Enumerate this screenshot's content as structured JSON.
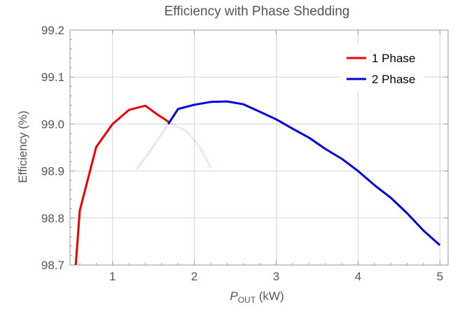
{
  "chart_data": {
    "type": "line",
    "title": "Efficiency with Phase Shedding",
    "xlabel_main": "P",
    "xlabel_sub": "OUT",
    "xlabel_unit": " (kW)",
    "ylabel": "Efficiency (%)",
    "xlim": [
      0.48,
      5.1
    ],
    "ylim": [
      98.7,
      99.2
    ],
    "xticks": [
      1,
      2,
      3,
      4,
      5
    ],
    "yticks": [
      98.7,
      98.8,
      98.9,
      99.0,
      99.1,
      99.2
    ],
    "ytick_labels": [
      "98.7",
      "98.8",
      "98.9",
      "99.0",
      "99.1",
      "99.2"
    ],
    "grid": true,
    "legend_position": "top-right",
    "series": [
      {
        "name": "1 Phase",
        "color": "#ee0000",
        "solid": [
          [
            0.55,
            98.7
          ],
          [
            0.6,
            98.816
          ],
          [
            0.8,
            98.951
          ],
          [
            1.0,
            99.0
          ],
          [
            1.2,
            99.03
          ],
          [
            1.4,
            99.039
          ],
          [
            1.55,
            99.02
          ],
          [
            1.7,
            99.003
          ]
        ],
        "faded": [
          [
            1.7,
            99.003
          ],
          [
            1.9,
            98.985
          ],
          [
            2.05,
            98.955
          ],
          [
            2.2,
            98.908
          ]
        ]
      },
      {
        "name": "2 Phase",
        "color": "#0000dd",
        "faded": [
          [
            1.3,
            98.905
          ],
          [
            1.45,
            98.94
          ],
          [
            1.68,
            99.0
          ]
        ],
        "solid": [
          [
            1.68,
            99.0
          ],
          [
            1.8,
            99.032
          ],
          [
            2.0,
            99.041
          ],
          [
            2.2,
            99.047
          ],
          [
            2.4,
            99.048
          ],
          [
            2.6,
            99.042
          ],
          [
            2.8,
            99.026
          ],
          [
            3.0,
            99.01
          ],
          [
            3.2,
            98.99
          ],
          [
            3.4,
            98.971
          ],
          [
            3.6,
            98.947
          ],
          [
            3.8,
            98.926
          ],
          [
            4.0,
            98.9
          ],
          [
            4.2,
            98.87
          ],
          [
            4.4,
            98.843
          ],
          [
            4.6,
            98.81
          ],
          [
            4.8,
            98.773
          ],
          [
            5.0,
            98.742
          ]
        ]
      }
    ]
  }
}
